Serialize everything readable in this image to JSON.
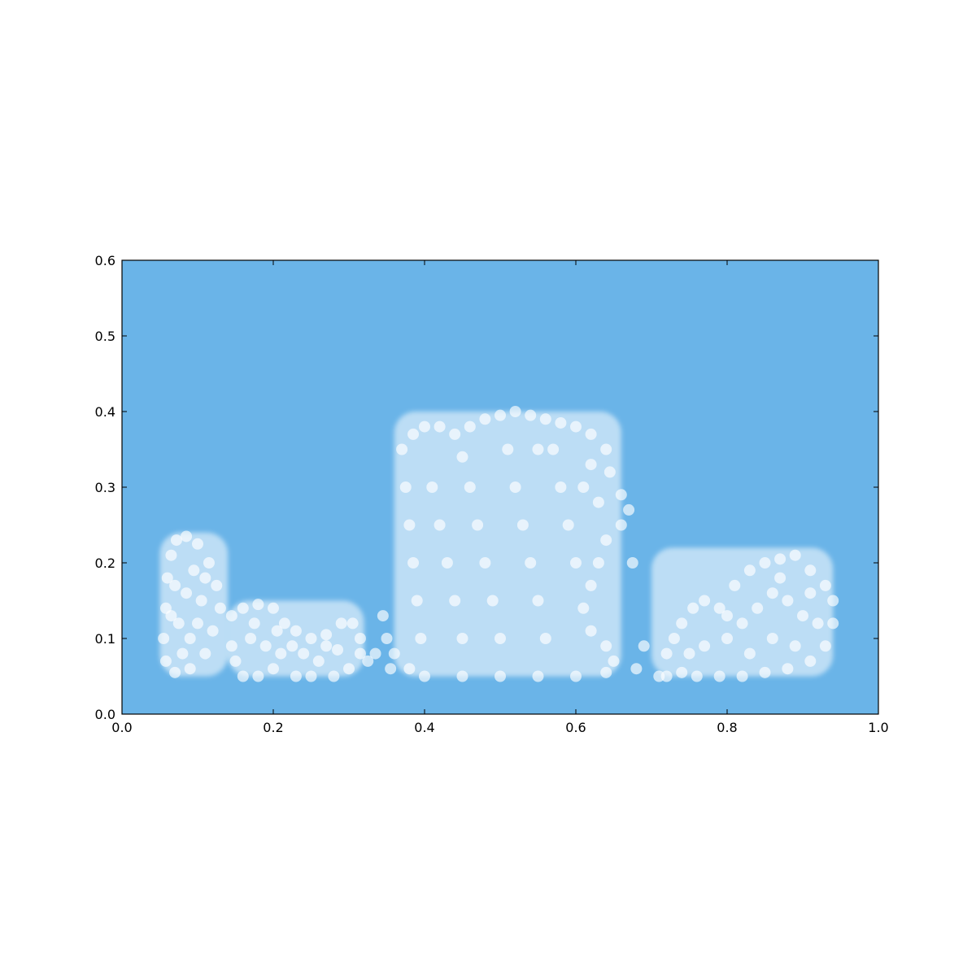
{
  "chart_data": {
    "type": "scatter",
    "title": "",
    "xlabel": "",
    "ylabel": "",
    "xlim": [
      0.0,
      1.0
    ],
    "ylim": [
      0.0,
      0.6
    ],
    "grid": false,
    "legend": "none",
    "background_color": "#6ab4e8",
    "point_color": "#ffffff",
    "point_alpha": 0.35,
    "xticks": [
      0.0,
      0.2,
      0.4,
      0.6,
      0.8,
      1.0
    ],
    "xtick_labels": [
      "0.0",
      "0.2",
      "0.4",
      "0.6",
      "0.8",
      "1.0"
    ],
    "yticks": [
      0.0,
      0.1,
      0.2,
      0.3,
      0.4,
      0.5,
      0.6
    ],
    "ytick_labels": [
      "0.0",
      "0.1",
      "0.2",
      "0.3",
      "0.4",
      "0.5",
      "0.6"
    ],
    "clusters": [
      {
        "x_range": [
          0.05,
          0.14
        ],
        "y_range": [
          0.05,
          0.24
        ]
      },
      {
        "x_range": [
          0.14,
          0.32
        ],
        "y_range": [
          0.05,
          0.15
        ]
      },
      {
        "x_range": [
          0.36,
          0.66
        ],
        "y_range": [
          0.05,
          0.4
        ]
      },
      {
        "x_range": [
          0.7,
          0.94
        ],
        "y_range": [
          0.05,
          0.22
        ]
      }
    ],
    "series": [
      {
        "values": [
          [
            0.055,
            0.1
          ],
          [
            0.058,
            0.14
          ],
          [
            0.06,
            0.18
          ],
          [
            0.065,
            0.21
          ],
          [
            0.072,
            0.23
          ],
          [
            0.085,
            0.235
          ],
          [
            0.1,
            0.225
          ],
          [
            0.115,
            0.2
          ],
          [
            0.125,
            0.17
          ],
          [
            0.13,
            0.14
          ],
          [
            0.12,
            0.11
          ],
          [
            0.11,
            0.08
          ],
          [
            0.09,
            0.06
          ],
          [
            0.07,
            0.055
          ],
          [
            0.058,
            0.07
          ],
          [
            0.075,
            0.12
          ],
          [
            0.085,
            0.16
          ],
          [
            0.095,
            0.19
          ],
          [
            0.105,
            0.15
          ],
          [
            0.09,
            0.1
          ],
          [
            0.08,
            0.08
          ],
          [
            0.1,
            0.12
          ],
          [
            0.07,
            0.17
          ],
          [
            0.11,
            0.18
          ],
          [
            0.065,
            0.13
          ],
          [
            0.145,
            0.13
          ],
          [
            0.16,
            0.14
          ],
          [
            0.18,
            0.145
          ],
          [
            0.2,
            0.14
          ],
          [
            0.215,
            0.12
          ],
          [
            0.23,
            0.11
          ],
          [
            0.25,
            0.1
          ],
          [
            0.27,
            0.105
          ],
          [
            0.29,
            0.12
          ],
          [
            0.305,
            0.12
          ],
          [
            0.315,
            0.1
          ],
          [
            0.315,
            0.08
          ],
          [
            0.3,
            0.06
          ],
          [
            0.28,
            0.05
          ],
          [
            0.25,
            0.05
          ],
          [
            0.23,
            0.05
          ],
          [
            0.2,
            0.06
          ],
          [
            0.18,
            0.05
          ],
          [
            0.16,
            0.05
          ],
          [
            0.15,
            0.07
          ],
          [
            0.145,
            0.09
          ],
          [
            0.17,
            0.1
          ],
          [
            0.19,
            0.09
          ],
          [
            0.21,
            0.08
          ],
          [
            0.24,
            0.08
          ],
          [
            0.26,
            0.07
          ],
          [
            0.285,
            0.085
          ],
          [
            0.175,
            0.12
          ],
          [
            0.225,
            0.09
          ],
          [
            0.205,
            0.11
          ],
          [
            0.27,
            0.09
          ],
          [
            0.37,
            0.35
          ],
          [
            0.385,
            0.37
          ],
          [
            0.4,
            0.38
          ],
          [
            0.42,
            0.38
          ],
          [
            0.44,
            0.37
          ],
          [
            0.46,
            0.38
          ],
          [
            0.48,
            0.39
          ],
          [
            0.5,
            0.395
          ],
          [
            0.52,
            0.4
          ],
          [
            0.54,
            0.395
          ],
          [
            0.56,
            0.39
          ],
          [
            0.58,
            0.385
          ],
          [
            0.6,
            0.38
          ],
          [
            0.62,
            0.37
          ],
          [
            0.64,
            0.35
          ],
          [
            0.645,
            0.32
          ],
          [
            0.66,
            0.29
          ],
          [
            0.67,
            0.27
          ],
          [
            0.66,
            0.25
          ],
          [
            0.64,
            0.23
          ],
          [
            0.63,
            0.2
          ],
          [
            0.62,
            0.17
          ],
          [
            0.61,
            0.14
          ],
          [
            0.62,
            0.11
          ],
          [
            0.64,
            0.09
          ],
          [
            0.65,
            0.07
          ],
          [
            0.64,
            0.055
          ],
          [
            0.6,
            0.05
          ],
          [
            0.55,
            0.05
          ],
          [
            0.5,
            0.05
          ],
          [
            0.45,
            0.05
          ],
          [
            0.4,
            0.05
          ],
          [
            0.38,
            0.06
          ],
          [
            0.375,
            0.3
          ],
          [
            0.38,
            0.25
          ],
          [
            0.385,
            0.2
          ],
          [
            0.39,
            0.15
          ],
          [
            0.395,
            0.1
          ],
          [
            0.41,
            0.3
          ],
          [
            0.42,
            0.25
          ],
          [
            0.43,
            0.2
          ],
          [
            0.44,
            0.15
          ],
          [
            0.45,
            0.1
          ],
          [
            0.46,
            0.3
          ],
          [
            0.47,
            0.25
          ],
          [
            0.48,
            0.2
          ],
          [
            0.49,
            0.15
          ],
          [
            0.5,
            0.1
          ],
          [
            0.51,
            0.35
          ],
          [
            0.52,
            0.3
          ],
          [
            0.53,
            0.25
          ],
          [
            0.54,
            0.2
          ],
          [
            0.55,
            0.15
          ],
          [
            0.56,
            0.1
          ],
          [
            0.57,
            0.35
          ],
          [
            0.58,
            0.3
          ],
          [
            0.59,
            0.25
          ],
          [
            0.6,
            0.2
          ],
          [
            0.61,
            0.3
          ],
          [
            0.62,
            0.33
          ],
          [
            0.63,
            0.28
          ],
          [
            0.55,
            0.35
          ],
          [
            0.45,
            0.34
          ],
          [
            0.355,
            0.06
          ],
          [
            0.36,
            0.08
          ],
          [
            0.35,
            0.1
          ],
          [
            0.345,
            0.13
          ],
          [
            0.335,
            0.08
          ],
          [
            0.325,
            0.07
          ],
          [
            0.68,
            0.06
          ],
          [
            0.69,
            0.09
          ],
          [
            0.675,
            0.2
          ],
          [
            0.71,
            0.05
          ],
          [
            0.72,
            0.08
          ],
          [
            0.73,
            0.1
          ],
          [
            0.74,
            0.12
          ],
          [
            0.755,
            0.14
          ],
          [
            0.77,
            0.15
          ],
          [
            0.79,
            0.14
          ],
          [
            0.81,
            0.17
          ],
          [
            0.83,
            0.19
          ],
          [
            0.85,
            0.2
          ],
          [
            0.87,
            0.205
          ],
          [
            0.89,
            0.21
          ],
          [
            0.91,
            0.19
          ],
          [
            0.93,
            0.17
          ],
          [
            0.94,
            0.15
          ],
          [
            0.94,
            0.12
          ],
          [
            0.93,
            0.09
          ],
          [
            0.91,
            0.07
          ],
          [
            0.88,
            0.06
          ],
          [
            0.85,
            0.055
          ],
          [
            0.82,
            0.05
          ],
          [
            0.79,
            0.05
          ],
          [
            0.76,
            0.05
          ],
          [
            0.74,
            0.055
          ],
          [
            0.72,
            0.05
          ],
          [
            0.8,
            0.1
          ],
          [
            0.82,
            0.12
          ],
          [
            0.84,
            0.14
          ],
          [
            0.86,
            0.16
          ],
          [
            0.88,
            0.15
          ],
          [
            0.9,
            0.13
          ],
          [
            0.92,
            0.12
          ],
          [
            0.86,
            0.1
          ],
          [
            0.83,
            0.08
          ],
          [
            0.89,
            0.09
          ],
          [
            0.77,
            0.09
          ],
          [
            0.75,
            0.08
          ],
          [
            0.91,
            0.16
          ],
          [
            0.87,
            0.18
          ],
          [
            0.8,
            0.13
          ]
        ]
      }
    ]
  }
}
